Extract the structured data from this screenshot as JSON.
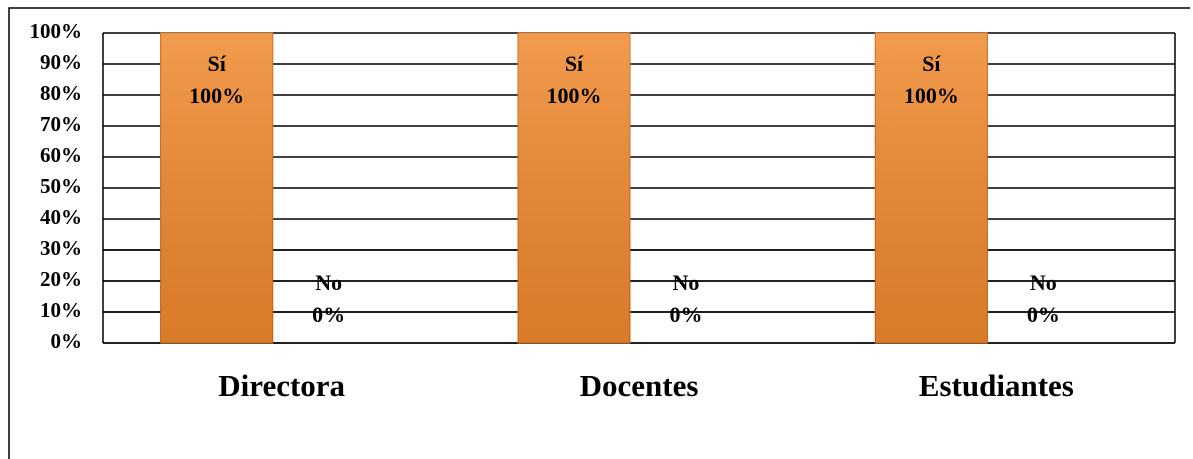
{
  "chart_data": {
    "type": "bar",
    "categories": [
      "Directora",
      "Docentes",
      "Estudiantes"
    ],
    "series": [
      {
        "name": "Sí",
        "color": "#f0892e",
        "values": [
          100,
          100,
          100
        ],
        "value_labels": [
          "100%",
          "100%",
          "100%"
        ]
      },
      {
        "name": "No",
        "color": "#f0892e",
        "values": [
          0,
          0,
          0
        ],
        "value_labels": [
          "0%",
          "0%",
          "0%"
        ]
      }
    ],
    "ylim": [
      0,
      100
    ],
    "yticks": [
      {
        "value": 0,
        "label": "0%"
      },
      {
        "value": 10,
        "label": "10%"
      },
      {
        "value": 20,
        "label": "20%"
      },
      {
        "value": 30,
        "label": "30%"
      },
      {
        "value": 40,
        "label": "40%"
      },
      {
        "value": 50,
        "label": "50%"
      },
      {
        "value": 60,
        "label": "60%"
      },
      {
        "value": 70,
        "label": "70%"
      },
      {
        "value": 80,
        "label": "80%"
      },
      {
        "value": 90,
        "label": "90%"
      },
      {
        "value": 100,
        "label": "100%"
      }
    ],
    "grid": true
  }
}
